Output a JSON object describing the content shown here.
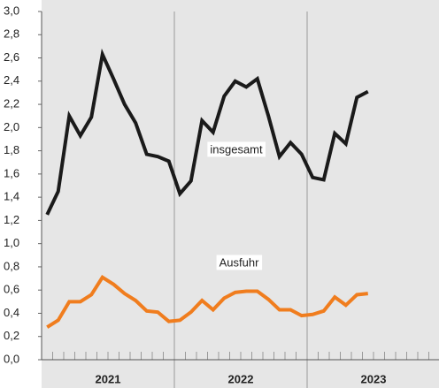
{
  "chart_data": {
    "type": "line",
    "categories": [
      null,
      null,
      null,
      null,
      null,
      null,
      null,
      null,
      null,
      null,
      null,
      null,
      null,
      null,
      null,
      null,
      null,
      null,
      null,
      null,
      null,
      null,
      null,
      null,
      null,
      null,
      null,
      null,
      null,
      null,
      null,
      null,
      null,
      null,
      null,
      null
    ],
    "groups": [
      "2021",
      "2022",
      "2023"
    ],
    "series": [
      {
        "name": "insgesamt",
        "color": "#1a1a1a",
        "values": [
          1.25,
          1.45,
          2.1,
          1.93,
          2.09,
          2.63,
          2.42,
          2.2,
          2.04,
          1.77,
          1.75,
          1.71,
          1.43,
          1.54,
          2.06,
          1.96,
          2.27,
          2.4,
          2.35,
          2.42,
          2.1,
          1.75,
          1.87,
          1.77,
          1.57,
          1.55,
          1.95,
          1.86,
          2.26,
          2.31,
          null,
          null,
          null,
          null,
          null,
          null
        ]
      },
      {
        "name": "Ausfuhr",
        "color": "#f07d1e",
        "values": [
          0.28,
          0.34,
          0.5,
          0.5,
          0.56,
          0.71,
          0.65,
          0.57,
          0.51,
          0.42,
          0.41,
          0.33,
          0.34,
          0.41,
          0.51,
          0.43,
          0.53,
          0.58,
          0.59,
          0.59,
          0.52,
          0.43,
          0.43,
          0.38,
          0.39,
          0.42,
          0.54,
          0.47,
          0.56,
          0.57,
          null,
          null,
          null,
          null,
          null,
          null
        ]
      }
    ],
    "ylim": [
      0,
      3.0
    ],
    "yticks": [
      {
        "value": 0,
        "label": "0,0"
      },
      {
        "value": 0.2,
        "label": "0,2"
      },
      {
        "value": 0.4,
        "label": "0,4"
      },
      {
        "value": 0.6,
        "label": "0,6"
      },
      {
        "value": 0.8,
        "label": "0,8"
      },
      {
        "value": 1.0,
        "label": "1,0"
      },
      {
        "value": 1.2,
        "label": "1,2"
      },
      {
        "value": 1.4,
        "label": "1,4"
      },
      {
        "value": 1.6,
        "label": "1,6"
      },
      {
        "value": 1.8,
        "label": "1,8"
      },
      {
        "value": 2.0,
        "label": "2,0"
      },
      {
        "value": 2.2,
        "label": "2,2"
      },
      {
        "value": 2.4,
        "label": "2,4"
      },
      {
        "value": 2.6,
        "label": "2,6"
      },
      {
        "value": 2.8,
        "label": "2,8"
      },
      {
        "value": 3.0,
        "label": "3,0"
      }
    ]
  }
}
